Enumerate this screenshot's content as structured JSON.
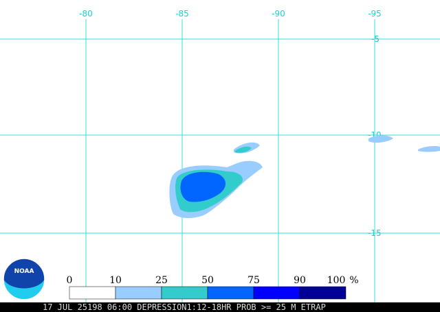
{
  "map": {
    "longitude_labels": [
      "-80",
      "-85",
      "-90",
      "-95"
    ],
    "latitude_labels": [
      "-5",
      "-10",
      "-15"
    ],
    "legend": {
      "labels": [
        "0",
        "10",
        "25",
        "50",
        "75",
        "90",
        "100"
      ],
      "unit": "%",
      "colors": [
        "#ffffff",
        "#99ccff",
        "#33cccc",
        "#0066ff",
        "#0000ff",
        "#000099"
      ]
    },
    "logo": "NOAA",
    "footer": "17 JUL 25198 06:00 DEPRESSION1:12-18HR PROB >= 25 M ETRAP"
  }
}
